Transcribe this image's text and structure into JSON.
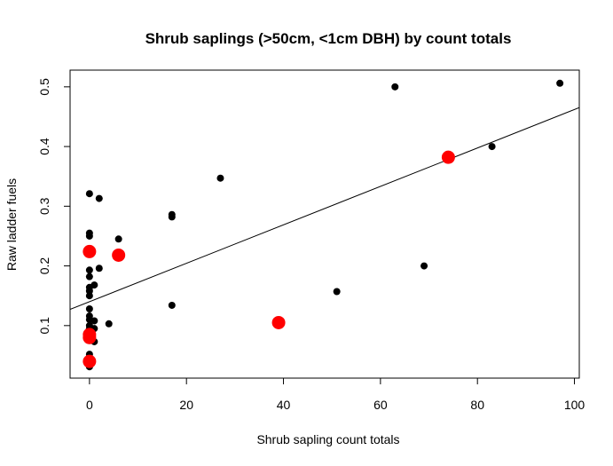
{
  "chart_data": {
    "type": "scatter",
    "title": "Shrub saplings (>50cm, <1cm DBH) by count totals",
    "xlabel": "Shrub sapling count totals",
    "ylabel": "Raw ladder fuels",
    "xlim": [
      -4,
      101
    ],
    "ylim": [
      0.012,
      0.528
    ],
    "x_ticks": [
      "0",
      "20",
      "40",
      "60",
      "80",
      "100"
    ],
    "y_ticks": [
      "0.1",
      "0.2",
      "0.3",
      "0.4",
      "0.5"
    ],
    "grid": false,
    "legend": "none",
    "series": [
      {
        "color": "#000000",
        "marker": "small-filled-circle",
        "points": [
          [
            0,
            0.321
          ],
          [
            2,
            0.313
          ],
          [
            0,
            0.255
          ],
          [
            0,
            0.25
          ],
          [
            0,
            0.193
          ],
          [
            0,
            0.182
          ],
          [
            0,
            0.164
          ],
          [
            1,
            0.168
          ],
          [
            0,
            0.158
          ],
          [
            0,
            0.15
          ],
          [
            0,
            0.128
          ],
          [
            0,
            0.116
          ],
          [
            0,
            0.11
          ],
          [
            1,
            0.108
          ],
          [
            0,
            0.1
          ],
          [
            0,
            0.095
          ],
          [
            1,
            0.095
          ],
          [
            0,
            0.09
          ],
          [
            0,
            0.086
          ],
          [
            0,
            0.075
          ],
          [
            1,
            0.073
          ],
          [
            0,
            0.052
          ],
          [
            0,
            0.044
          ],
          [
            0,
            0.035
          ],
          [
            0,
            0.031
          ],
          [
            2,
            0.196
          ],
          [
            4,
            0.103
          ],
          [
            6,
            0.245
          ],
          [
            17,
            0.286
          ],
          [
            17,
            0.282
          ],
          [
            17,
            0.134
          ],
          [
            27,
            0.347
          ],
          [
            51,
            0.157
          ],
          [
            63,
            0.5
          ],
          [
            69,
            0.2
          ],
          [
            83,
            0.4
          ],
          [
            97,
            0.506
          ]
        ]
      },
      {
        "color": "#ff0000",
        "marker": "large-filled-circle",
        "points": [
          [
            0,
            0.224
          ],
          [
            6,
            0.218
          ],
          [
            0,
            0.085
          ],
          [
            0,
            0.08
          ],
          [
            0,
            0.04
          ],
          [
            39,
            0.105
          ],
          [
            74,
            0.382
          ]
        ]
      }
    ],
    "fit_line": {
      "intercept": 0.14,
      "slope": 0.00322,
      "color": "#000000"
    }
  }
}
